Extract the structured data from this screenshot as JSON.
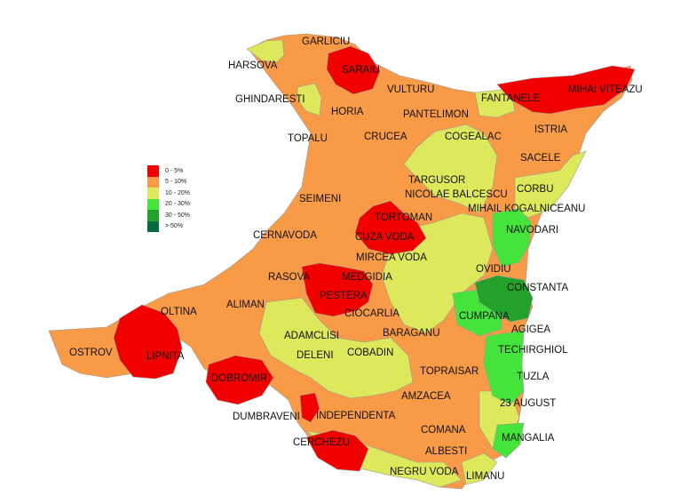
{
  "legend": {
    "items": [
      {
        "label": "0 - 5%",
        "color": "#f20000"
      },
      {
        "label": "5 - 10%",
        "color": "#f99a46"
      },
      {
        "label": "10 - 20%",
        "color": "#dde95a"
      },
      {
        "label": "20 - 30%",
        "color": "#45e43a"
      },
      {
        "label": "30 - 50%",
        "color": "#22a22a"
      },
      {
        "label": "> 50%",
        "color": "#066b3a"
      }
    ]
  },
  "localities": [
    {
      "name": "GARLICIU"
    },
    {
      "name": "HARSOVA"
    },
    {
      "name": "SARAIU"
    },
    {
      "name": "VULTURU"
    },
    {
      "name": "FANTANELE"
    },
    {
      "name": "MIHAI VITEAZU"
    },
    {
      "name": "GHINDARESTI"
    },
    {
      "name": "HORIA"
    },
    {
      "name": "PANTELIMON"
    },
    {
      "name": "ISTRIA"
    },
    {
      "name": "TOPALU"
    },
    {
      "name": "CRUCEA"
    },
    {
      "name": "COGEALAC"
    },
    {
      "name": "SACELE"
    },
    {
      "name": "TARGUSOR"
    },
    {
      "name": "NICOLAE BALCESCU"
    },
    {
      "name": "CORBU"
    },
    {
      "name": "SEIMENI"
    },
    {
      "name": "TORTOMAN"
    },
    {
      "name": "MIHAIL KOGALNICEANU"
    },
    {
      "name": "CERNAVODA"
    },
    {
      "name": "CUZA VODA"
    },
    {
      "name": "NAVODARI"
    },
    {
      "name": "MIRCEA VODA"
    },
    {
      "name": "OVIDIU"
    },
    {
      "name": "RASOVA"
    },
    {
      "name": "MEDGIDIA"
    },
    {
      "name": "CONSTANTA"
    },
    {
      "name": "PESTERA"
    },
    {
      "name": "OLTINA"
    },
    {
      "name": "ALIMAN"
    },
    {
      "name": "CIOCARLIA"
    },
    {
      "name": "CUMPANA"
    },
    {
      "name": "AGIGEA"
    },
    {
      "name": "ADAMCLISI"
    },
    {
      "name": "BARAGANU"
    },
    {
      "name": "OSTROV"
    },
    {
      "name": "LIPNITA"
    },
    {
      "name": "DELENI"
    },
    {
      "name": "COBADIN"
    },
    {
      "name": "TECHIRGHIOL"
    },
    {
      "name": "TOPRAISAR"
    },
    {
      "name": "DOBROMIR"
    },
    {
      "name": "TUZLA"
    },
    {
      "name": "AMZACEA"
    },
    {
      "name": "23 AUGUST"
    },
    {
      "name": "DUMBRAVENI"
    },
    {
      "name": "INDEPENDENTA"
    },
    {
      "name": "COMANA"
    },
    {
      "name": "MANGALIA"
    },
    {
      "name": "CERCHEZU"
    },
    {
      "name": "ALBESTI"
    },
    {
      "name": "NEGRU VODA"
    },
    {
      "name": "LIMANU"
    }
  ]
}
